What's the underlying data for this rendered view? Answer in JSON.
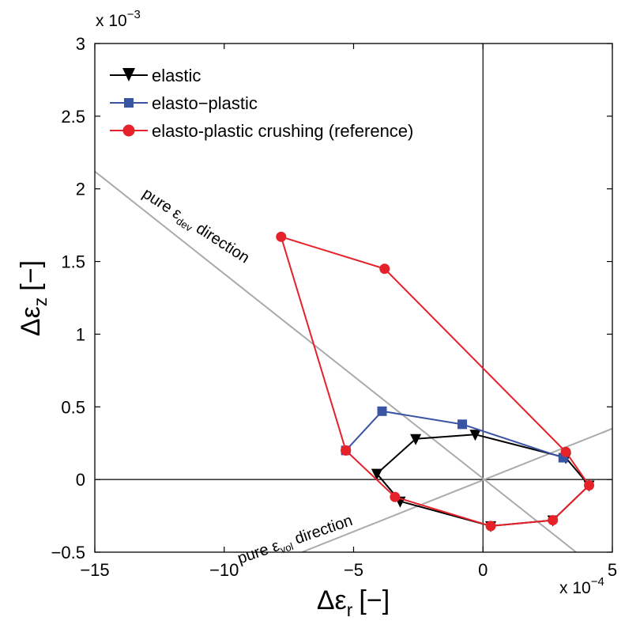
{
  "chart_data": {
    "type": "line",
    "x_multiplier_label": {
      "base": "x 10",
      "exponent": "−4"
    },
    "y_multiplier_label": {
      "base": "x 10",
      "exponent": "−3"
    },
    "xlabel": {
      "symbol": "Δε",
      "subscript": "r",
      "unit": "[−]"
    },
    "ylabel": {
      "symbol": "Δε",
      "subscript": "z",
      "unit": "[−]"
    },
    "xlim": [
      -15,
      5
    ],
    "ylim": [
      -0.5,
      3
    ],
    "x_ticks": [
      -15,
      -10,
      -5,
      0,
      5
    ],
    "x_tick_labels": [
      "−15",
      "−10",
      "−5",
      "0",
      "5"
    ],
    "y_ticks": [
      -0.5,
      0,
      0.5,
      1,
      1.5,
      2,
      2.5,
      3
    ],
    "y_tick_labels": [
      "−0.5",
      "0",
      "0.5",
      "1",
      "1.5",
      "2",
      "2.5",
      "3"
    ],
    "grid": false,
    "legend_position": "top-left",
    "series": [
      {
        "name": "elastic",
        "color": "#000000",
        "marker": "triangle-down",
        "x": [
          -4.1,
          -2.6,
          -0.3,
          3.2,
          4.1,
          2.7,
          0.3,
          -3.2,
          -4.1
        ],
        "y": [
          0.04,
          0.28,
          0.31,
          0.15,
          -0.04,
          -0.28,
          -0.32,
          -0.15,
          0.04
        ]
      },
      {
        "name": "elasto−plastic",
        "color": "#3a54a4",
        "marker": "square",
        "x": [
          -5.3,
          -3.9,
          -0.8,
          3.1
        ],
        "y": [
          0.2,
          0.47,
          0.38,
          0.15
        ]
      },
      {
        "name": "elasto-plastic crushing (reference)",
        "color": "#e5212a",
        "marker": "circle",
        "x": [
          -5.3,
          -7.8,
          -3.8,
          3.2,
          4.1,
          2.7,
          0.3,
          -3.4,
          -5.3
        ],
        "y": [
          0.2,
          1.67,
          1.45,
          0.19,
          -0.04,
          -0.28,
          -0.32,
          -0.12,
          0.2
        ]
      }
    ],
    "reference_lines": [
      {
        "type": "axis",
        "orientation": "horizontal",
        "value": 0,
        "color": "#000000"
      },
      {
        "type": "axis",
        "orientation": "vertical",
        "value": 0,
        "color": "#000000"
      },
      {
        "type": "line",
        "color": "#aaaaaa",
        "x": [
          -15,
          3.6
        ],
        "y": [
          2.12,
          -0.5
        ]
      },
      {
        "type": "line",
        "color": "#aaaaaa",
        "x": [
          -7,
          5
        ],
        "y": [
          -0.5,
          0.35
        ]
      }
    ],
    "annotations": [
      {
        "text_main": "pure ε",
        "text_sub": "dev",
        "text_after": " direction",
        "x": -13.2,
        "y": 1.95,
        "angle": 33
      },
      {
        "text_main": "pure ε",
        "text_sub": "vol",
        "text_after": " direction",
        "x": -9.4,
        "y": -0.58,
        "angle": -19
      }
    ]
  }
}
